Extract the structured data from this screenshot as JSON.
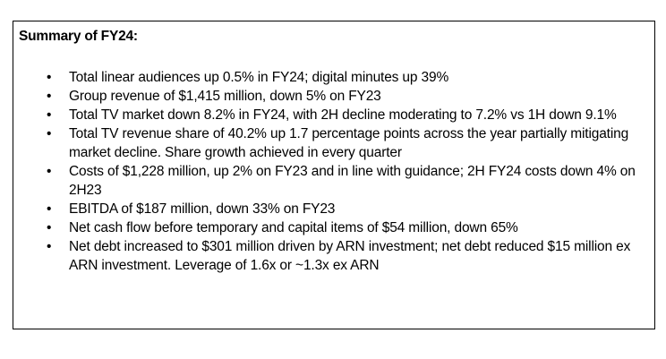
{
  "summary": {
    "title": "Summary of FY24:",
    "bullet_icon": "bullet-dot",
    "items": [
      "Total linear audiences up 0.5% in FY24; digital minutes up 39%",
      "Group revenue of $1,415 million, down 5% on FY23",
      "Total TV market down 8.2% in FY24, with 2H decline moderating to 7.2% vs 1H down 9.1%",
      "Total TV revenue share of 40.2% up 1.7 percentage points across the year partially mitigating market decline. Share growth achieved in every quarter",
      "Costs of $1,228 million, up 2% on FY23 and in line with guidance; 2H FY24 costs down 4% on 2H23",
      "EBITDA of $187 million, down 33% on FY23",
      "Net cash flow before temporary and capital items of $54 million, down 65%",
      "Net debt increased to $301 million driven by ARN investment; net debt reduced $15 million ex ARN investment. Leverage of 1.6x or ~1.3x ex ARN"
    ]
  }
}
